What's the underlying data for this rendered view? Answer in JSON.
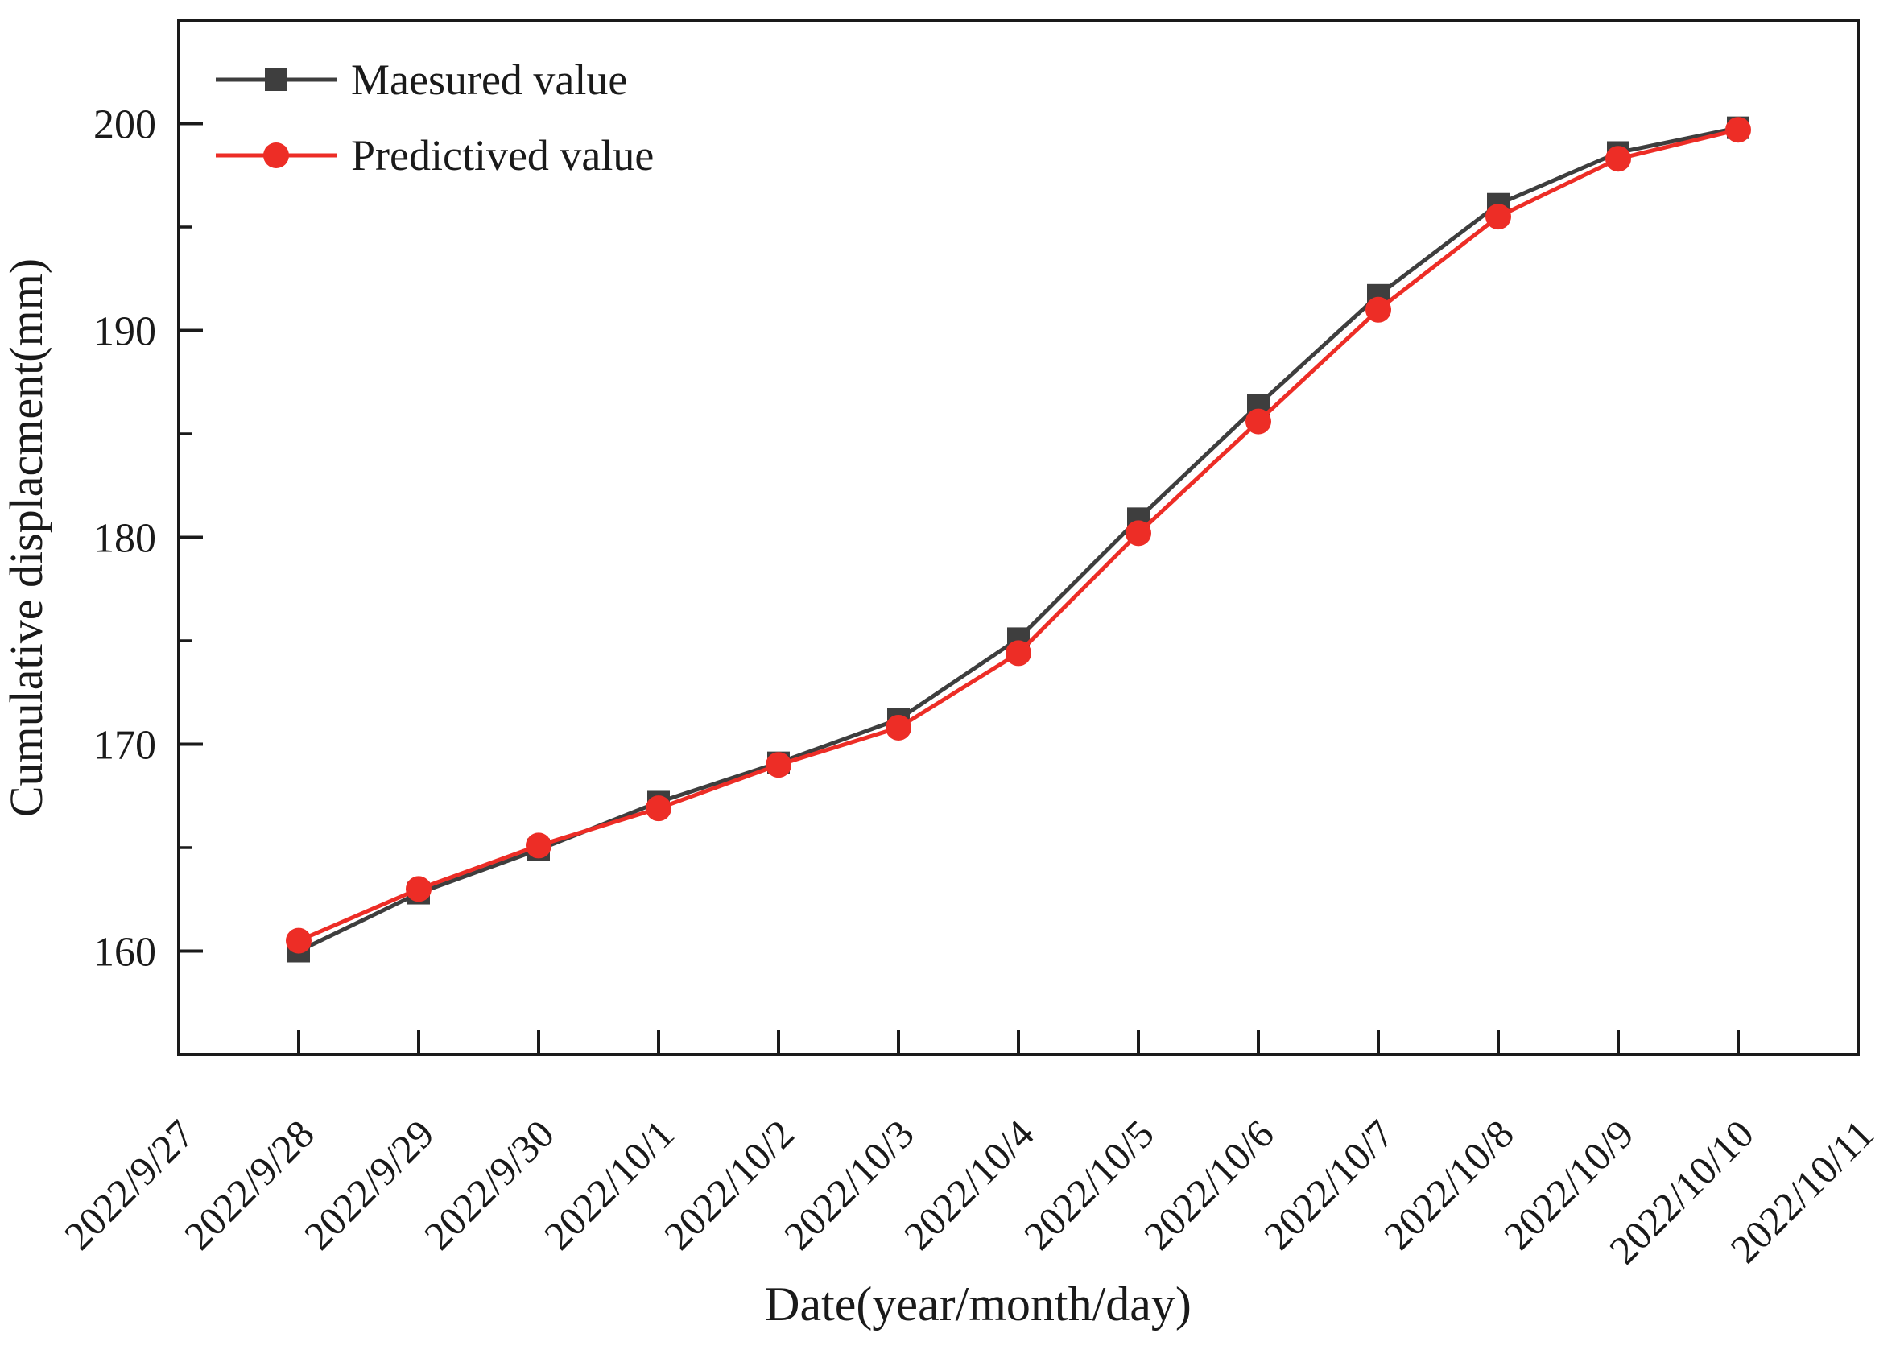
{
  "chart_data": {
    "type": "line",
    "title": "",
    "xlabel": "Date(year/month/day)",
    "ylabel": "Cumulative displacment(mm)",
    "categories": [
      "2022/9/27",
      "2022/9/28",
      "2022/9/29",
      "2022/9/30",
      "2022/10/1",
      "2022/10/2",
      "2022/10/3",
      "2022/10/4",
      "2022/10/5",
      "2022/10/6",
      "2022/10/7",
      "2022/10/8",
      "2022/10/9",
      "2022/10/10",
      "2022/10/11"
    ],
    "series": [
      {
        "name": "Maesured value",
        "marker": "square",
        "color": "#3e3e3e",
        "start_index": 1,
        "values": [
          160.0,
          162.8,
          164.9,
          167.2,
          169.1,
          171.2,
          175.1,
          180.9,
          186.4,
          191.7,
          196.1,
          198.6,
          199.8
        ]
      },
      {
        "name": "Predictived value",
        "marker": "circle",
        "color": "#ed2d26",
        "start_index": 1,
        "values": [
          160.5,
          163.0,
          165.1,
          166.9,
          169.0,
          170.8,
          174.4,
          180.2,
          185.6,
          191.0,
          195.5,
          198.3,
          199.7
        ]
      }
    ],
    "ylim": [
      155,
      205
    ],
    "yticks": [
      160,
      170,
      180,
      190,
      200
    ],
    "yticks_minor": [
      165,
      175,
      185,
      195
    ],
    "grid": "off",
    "legend_position": "top-left",
    "axis_color": "#1a1a1a",
    "background_color": "#ffffff"
  }
}
